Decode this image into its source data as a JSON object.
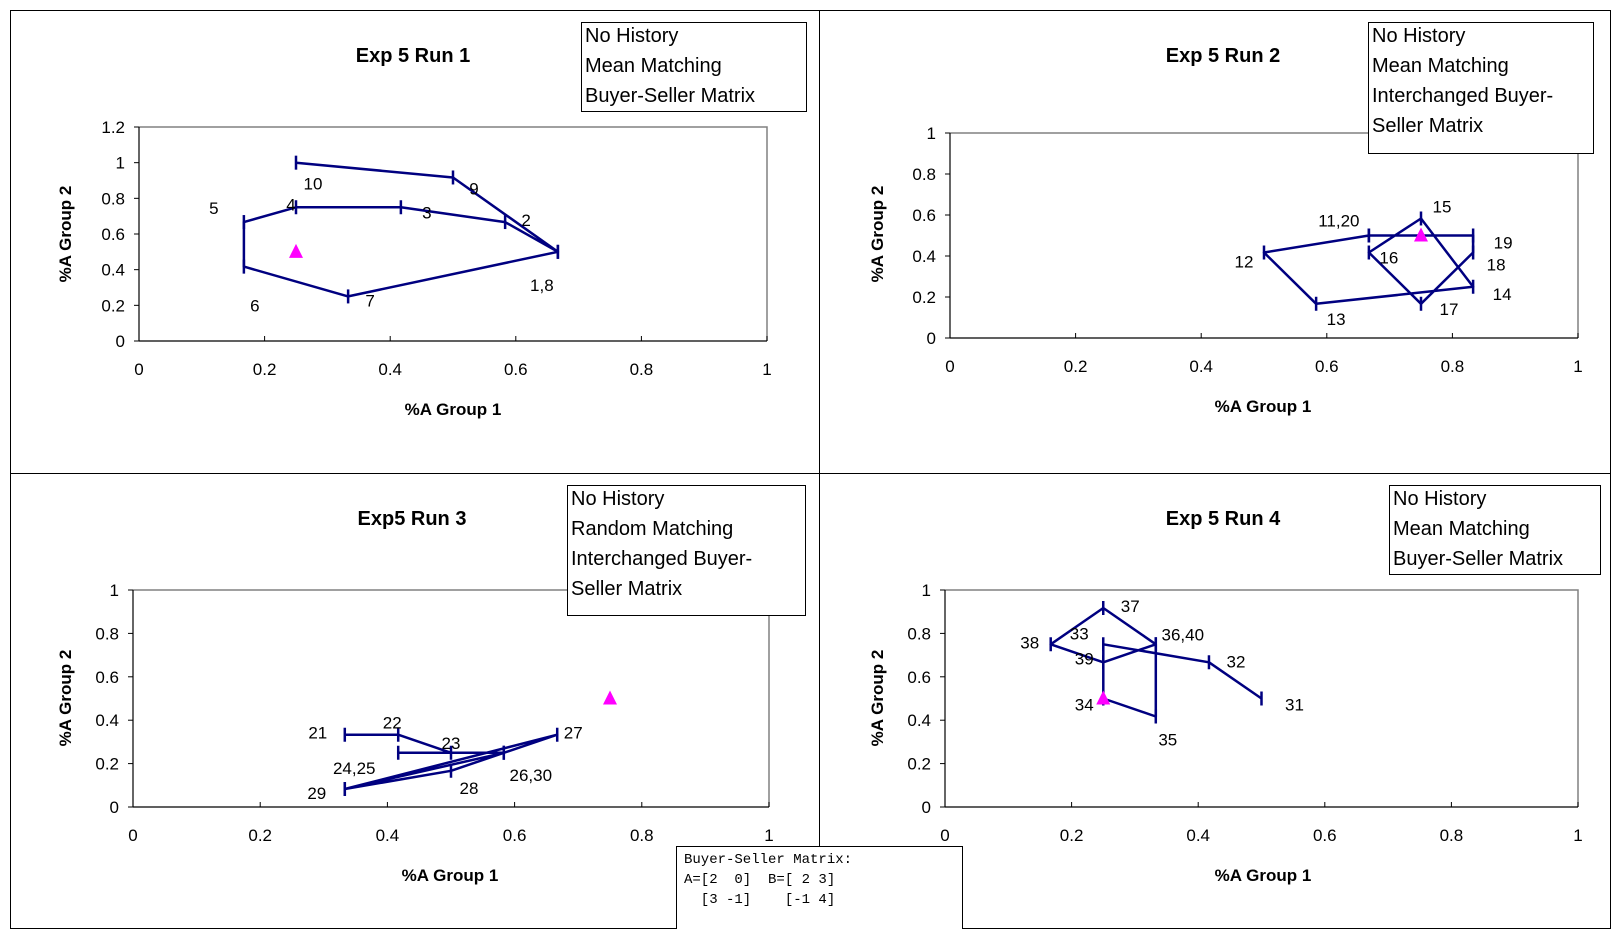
{
  "matrix_note": {
    "lines": [
      "Buyer-Seller Matrix:",
      "A=[2  0]  B=[ 2 3]",
      "  [3 -1]    [-1 4]"
    ]
  },
  "chart_data": [
    {
      "type": "line",
      "title": "Exp 5 Run 1",
      "xlabel": "%A Group 1",
      "ylabel": "%A Group 2",
      "xlim": [
        0,
        1
      ],
      "ylim": [
        0,
        1.2
      ],
      "x_ticks": [
        "0",
        "0.2",
        "0.4",
        "0.6",
        "0.8",
        "1"
      ],
      "y_ticks": [
        "0",
        "0.2",
        "0.4",
        "0.6",
        "0.8",
        "1",
        "1.2"
      ],
      "note": [
        "No History",
        "Mean Matching",
        "Buyer-Seller Matrix"
      ],
      "path": [
        [
          0.667,
          0.5
        ],
        [
          0.583,
          0.667
        ],
        [
          0.417,
          0.75
        ],
        [
          0.25,
          0.75
        ],
        [
          0.167,
          0.667
        ],
        [
          0.167,
          0.417
        ],
        [
          0.333,
          0.25
        ],
        [
          0.667,
          0.5
        ],
        [
          0.5,
          0.917
        ],
        [
          0.25,
          1.0
        ]
      ],
      "labels": [
        {
          "text": "1,8",
          "x": 0.667,
          "y": 0.5
        },
        {
          "text": "2",
          "x": 0.583,
          "y": 0.667
        },
        {
          "text": "3",
          "x": 0.417,
          "y": 0.75
        },
        {
          "text": "4",
          "x": 0.25,
          "y": 0.75
        },
        {
          "text": "5",
          "x": 0.167,
          "y": 0.667
        },
        {
          "text": "6",
          "x": 0.167,
          "y": 0.417
        },
        {
          "text": "7",
          "x": 0.333,
          "y": 0.25
        },
        {
          "text": "9",
          "x": 0.5,
          "y": 0.917
        },
        {
          "text": "10",
          "x": 0.25,
          "y": 1.0
        }
      ],
      "equilibrium": [
        0.25,
        0.5
      ]
    },
    {
      "type": "line",
      "title": "Exp 5 Run 2",
      "xlabel": "%A Group 1",
      "ylabel": "%A Group 2",
      "xlim": [
        0,
        1
      ],
      "ylim": [
        0,
        1
      ],
      "x_ticks": [
        "0",
        "0.2",
        "0.4",
        "0.6",
        "0.8",
        "1"
      ],
      "y_ticks": [
        "0",
        "0.2",
        "0.4",
        "0.6",
        "0.8",
        "1"
      ],
      "note": [
        "No History",
        "Mean Matching",
        "Interchanged Buyer-",
        "Seller Matrix"
      ],
      "path": [
        [
          0.667,
          0.5
        ],
        [
          0.5,
          0.417
        ],
        [
          0.583,
          0.167
        ],
        [
          0.833,
          0.25
        ],
        [
          0.75,
          0.583
        ],
        [
          0.667,
          0.417
        ],
        [
          0.75,
          0.167
        ],
        [
          0.833,
          0.417
        ],
        [
          0.833,
          0.5
        ],
        [
          0.667,
          0.5
        ]
      ],
      "labels": [
        {
          "text": "11,20",
          "x": 0.667,
          "y": 0.5
        },
        {
          "text": "12",
          "x": 0.5,
          "y": 0.417
        },
        {
          "text": "13",
          "x": 0.583,
          "y": 0.167
        },
        {
          "text": "14",
          "x": 0.833,
          "y": 0.25
        },
        {
          "text": "15",
          "x": 0.75,
          "y": 0.583
        },
        {
          "text": "16",
          "x": 0.667,
          "y": 0.417
        },
        {
          "text": "17",
          "x": 0.75,
          "y": 0.167
        },
        {
          "text": "18",
          "x": 0.833,
          "y": 0.417
        },
        {
          "text": "19",
          "x": 0.833,
          "y": 0.5
        }
      ],
      "equilibrium": [
        0.75,
        0.5
      ]
    },
    {
      "type": "line",
      "title": "Exp5 Run 3",
      "xlabel": "%A Group 1",
      "ylabel": "%A Group 2",
      "xlim": [
        0,
        1
      ],
      "ylim": [
        0,
        1
      ],
      "x_ticks": [
        "0",
        "0.2",
        "0.4",
        "0.6",
        "0.8",
        "1"
      ],
      "y_ticks": [
        "0",
        "0.2",
        "0.4",
        "0.6",
        "0.8",
        "1"
      ],
      "note": [
        "No History",
        "Random Matching",
        "Interchanged Buyer-",
        "Seller Matrix"
      ],
      "path": [
        [
          0.333,
          0.333
        ],
        [
          0.417,
          0.333
        ],
        [
          0.5,
          0.25
        ],
        [
          0.417,
          0.25
        ],
        [
          0.583,
          0.25
        ],
        [
          0.333,
          0.083
        ],
        [
          0.667,
          0.333
        ],
        [
          0.5,
          0.167
        ],
        [
          0.333,
          0.083
        ],
        [
          0.583,
          0.25
        ]
      ],
      "labels": [
        {
          "text": "21",
          "x": 0.333,
          "y": 0.333
        },
        {
          "text": "22",
          "x": 0.417,
          "y": 0.333
        },
        {
          "text": "23",
          "x": 0.5,
          "y": 0.25
        },
        {
          "text": "24,25",
          "x": 0.417,
          "y": 0.25
        },
        {
          "text": "26,30",
          "x": 0.583,
          "y": 0.25
        },
        {
          "text": "27",
          "x": 0.667,
          "y": 0.333
        },
        {
          "text": "28",
          "x": 0.5,
          "y": 0.167
        },
        {
          "text": "29",
          "x": 0.333,
          "y": 0.083
        }
      ],
      "equilibrium": [
        0.75,
        0.5
      ]
    },
    {
      "type": "line",
      "title": "Exp 5 Run 4",
      "xlabel": "%A Group 1",
      "ylabel": "%A Group 2",
      "xlim": [
        0,
        1
      ],
      "ylim": [
        0,
        1
      ],
      "x_ticks": [
        "0",
        "0.2",
        "0.4",
        "0.6",
        "0.8",
        "1"
      ],
      "y_ticks": [
        "0",
        "0.2",
        "0.4",
        "0.6",
        "0.8",
        "1"
      ],
      "note": [
        "No History",
        "Mean Matching",
        "Buyer-Seller Matrix"
      ],
      "path": [
        [
          0.5,
          0.5
        ],
        [
          0.417,
          0.667
        ],
        [
          0.25,
          0.75
        ],
        [
          0.25,
          0.5
        ],
        [
          0.333,
          0.417
        ],
        [
          0.333,
          0.75
        ],
        [
          0.25,
          0.917
        ],
        [
          0.167,
          0.75
        ],
        [
          0.25,
          0.667
        ],
        [
          0.333,
          0.75
        ]
      ],
      "labels": [
        {
          "text": "31",
          "x": 0.5,
          "y": 0.5
        },
        {
          "text": "32",
          "x": 0.417,
          "y": 0.667
        },
        {
          "text": "33",
          "x": 0.25,
          "y": 0.75
        },
        {
          "text": "34",
          "x": 0.25,
          "y": 0.5
        },
        {
          "text": "35",
          "x": 0.333,
          "y": 0.417
        },
        {
          "text": "36,40",
          "x": 0.333,
          "y": 0.75
        },
        {
          "text": "37",
          "x": 0.25,
          "y": 0.917
        },
        {
          "text": "38",
          "x": 0.167,
          "y": 0.75
        },
        {
          "text": "39",
          "x": 0.25,
          "y": 0.667
        }
      ],
      "equilibrium": [
        0.25,
        0.5
      ]
    }
  ],
  "colors": {
    "line": "#000080",
    "equilibrium_marker": "#ff00ff",
    "plot_border": "#808080",
    "frame": "#000000"
  }
}
